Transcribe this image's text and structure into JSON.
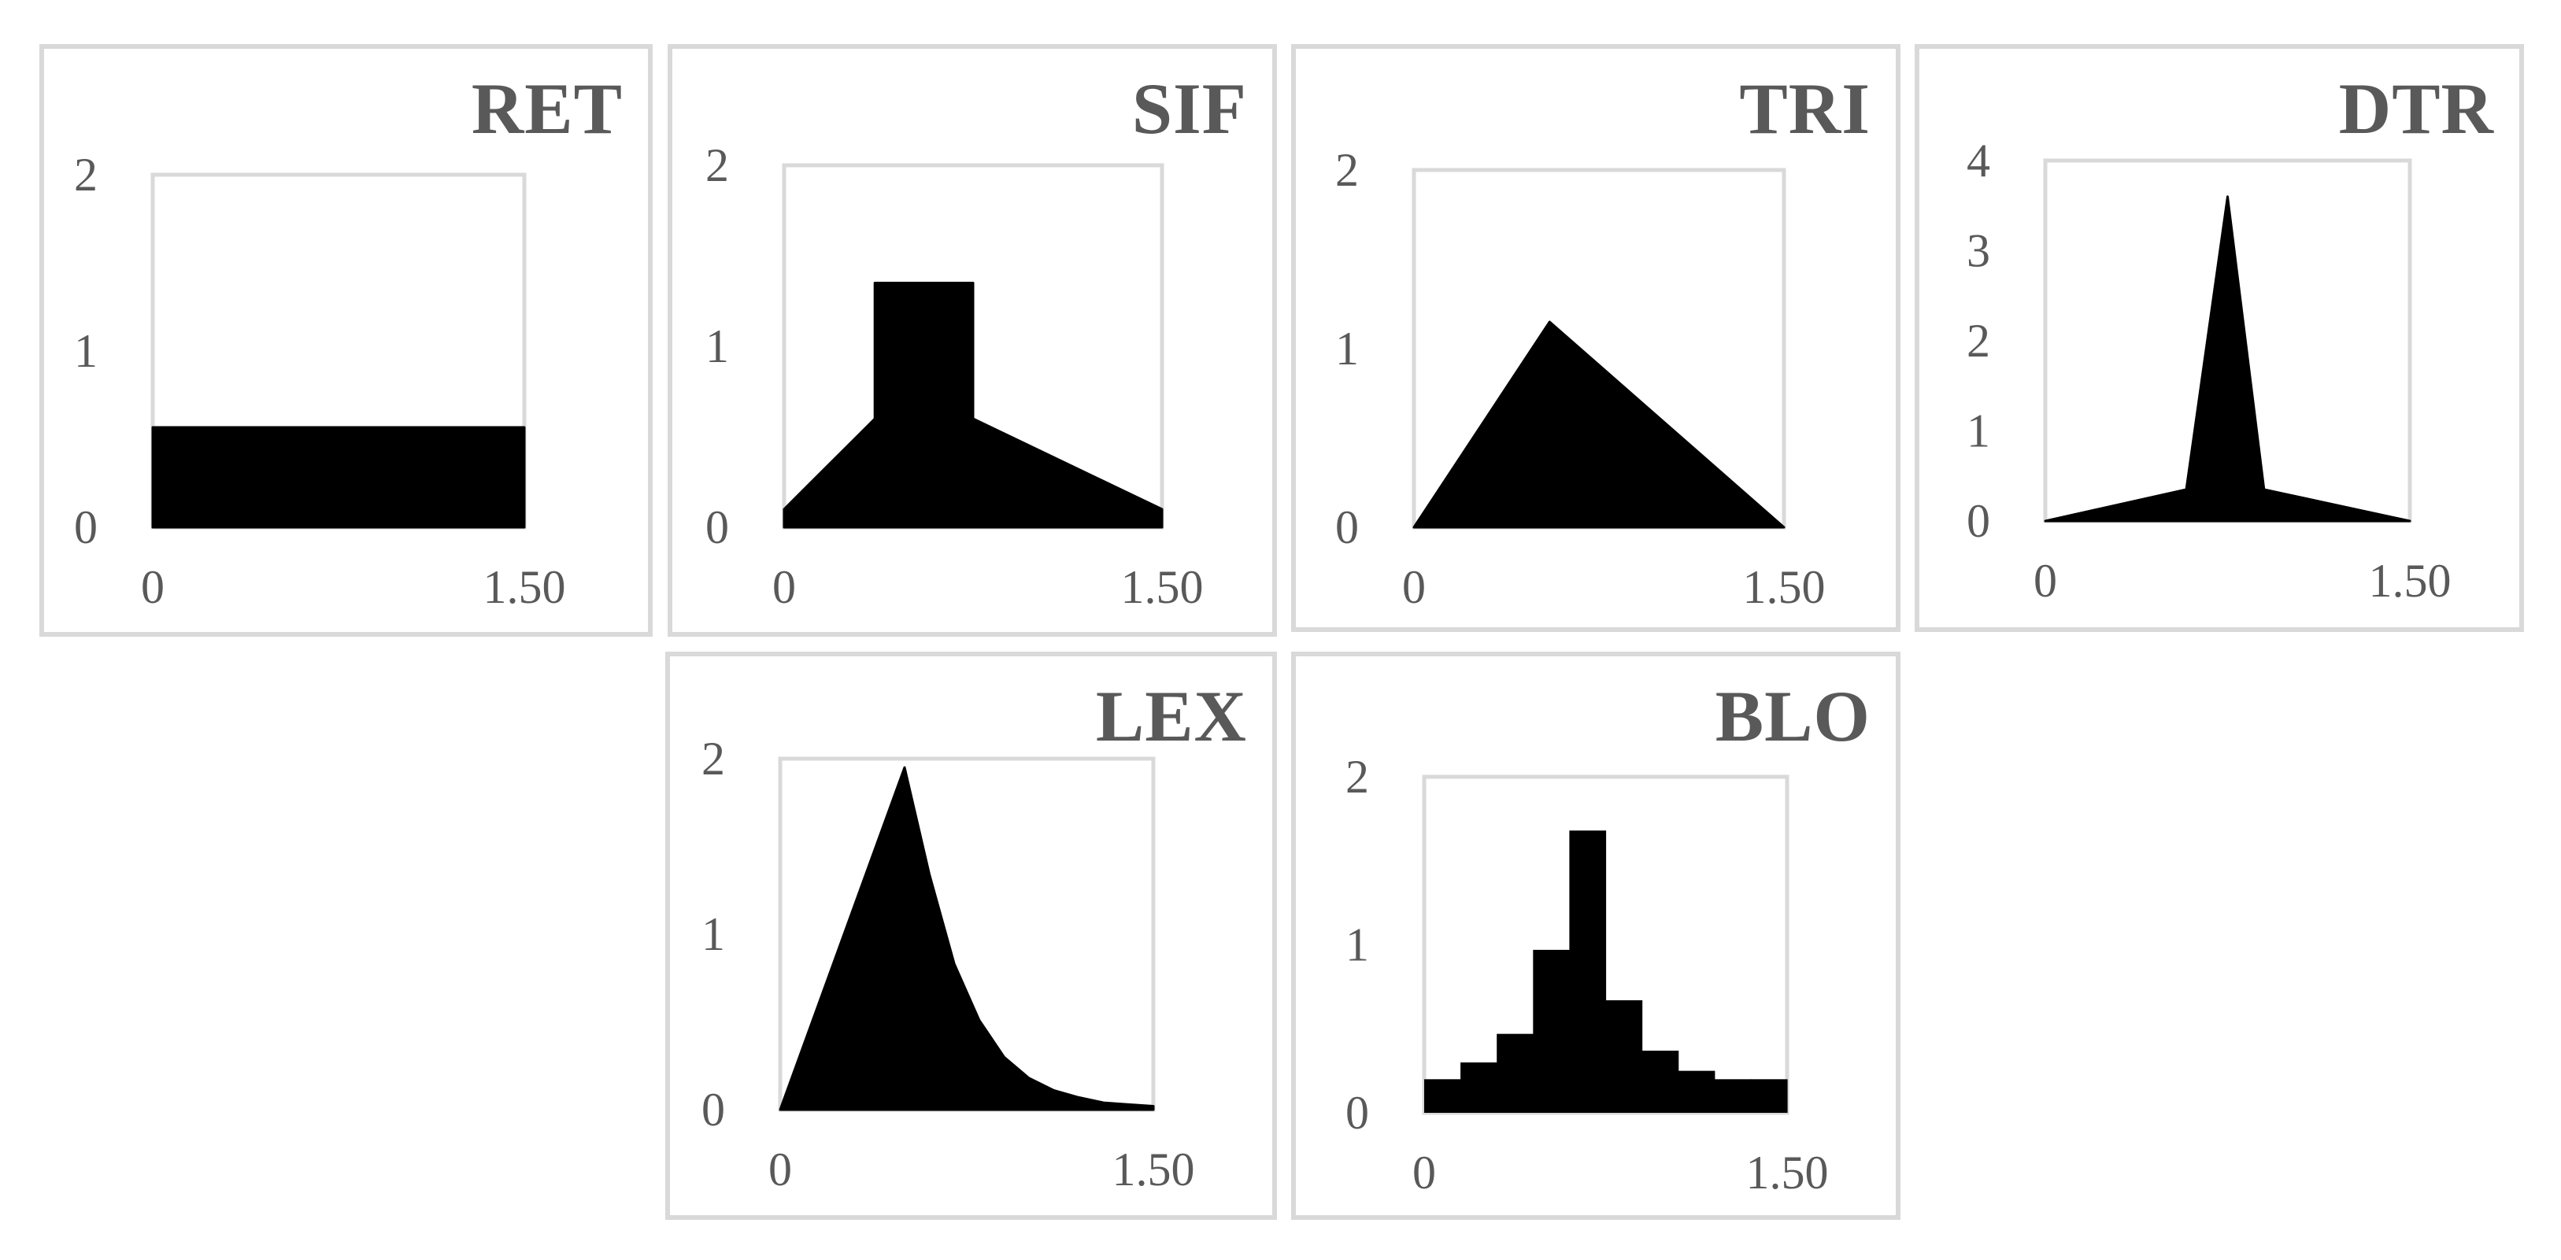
{
  "chart_data": [
    {
      "type": "area",
      "title": "RET",
      "xlim": [
        0,
        1.5
      ],
      "ylim": [
        0,
        2
      ],
      "x_tick_labels": [
        "0",
        "1.50"
      ],
      "y_tick_labels": [
        "0",
        "1",
        "2"
      ],
      "x": [
        0,
        0,
        1.5,
        1.5
      ],
      "y": [
        0,
        0.5667,
        0.5667,
        0
      ],
      "fill_color": "#000000"
    },
    {
      "type": "area",
      "title": "SIF",
      "xlim": [
        0,
        1.5
      ],
      "ylim": [
        0,
        2
      ],
      "x_tick_labels": [
        "0",
        "1.50"
      ],
      "y_tick_labels": [
        "0",
        "1",
        "2"
      ],
      "x": [
        0,
        0,
        0.36,
        0.36,
        0.75,
        0.75,
        1.5,
        1.5
      ],
      "y": [
        0,
        0.1,
        0.6,
        1.35,
        1.35,
        0.6,
        0.1,
        0
      ],
      "fill_color": "#000000"
    },
    {
      "type": "area",
      "title": "TRI",
      "xlim": [
        0,
        1.5
      ],
      "ylim": [
        0,
        2
      ],
      "x_tick_labels": [
        "0",
        "1.50"
      ],
      "y_tick_labels": [
        "0",
        "1",
        "2"
      ],
      "x": [
        0,
        0.55,
        1.5
      ],
      "y": [
        0,
        1.15,
        0
      ],
      "fill_color": "#000000"
    },
    {
      "type": "area",
      "title": "DTR",
      "xlim": [
        0,
        1.5
      ],
      "ylim": [
        0,
        4
      ],
      "x_tick_labels": [
        "0",
        "1.50"
      ],
      "y_tick_labels": [
        "0",
        "1",
        "2",
        "3",
        "4"
      ],
      "x": [
        0,
        0.58,
        0.75,
        0.9,
        1.5
      ],
      "y": [
        0,
        0.35,
        3.6,
        0.35,
        0
      ],
      "fill_color": "#000000"
    },
    {
      "type": "area",
      "title": "LEX",
      "xlim": [
        0,
        1.5
      ],
      "ylim": [
        0,
        2
      ],
      "x_tick_labels": [
        "0",
        "1.50"
      ],
      "y_tick_labels": [
        "0",
        "1",
        "2"
      ],
      "x": [
        0,
        0.5,
        0.6,
        0.7,
        0.8,
        0.9,
        1.0,
        1.1,
        1.2,
        1.3,
        1.4,
        1.5
      ],
      "y": [
        0,
        1.95,
        1.34,
        0.83,
        0.51,
        0.3,
        0.18,
        0.11,
        0.07,
        0.04,
        0.03,
        0.02
      ],
      "fill_color": "#000000"
    },
    {
      "type": "bar",
      "title": "BLO",
      "xlim": [
        0,
        1.5
      ],
      "ylim": [
        0,
        2
      ],
      "x_tick_labels": [
        "0",
        "1.50"
      ],
      "y_tick_labels": [
        "0",
        "1",
        "2"
      ],
      "bin_edges": [
        0,
        0.15,
        0.3,
        0.45,
        0.6,
        0.75,
        0.9,
        1.05,
        1.2,
        1.35,
        1.5
      ],
      "values": [
        0.2,
        0.3,
        0.47,
        0.97,
        1.68,
        0.67,
        0.37,
        0.25,
        0.2,
        0.2
      ],
      "fill_color": "#000000"
    }
  ]
}
